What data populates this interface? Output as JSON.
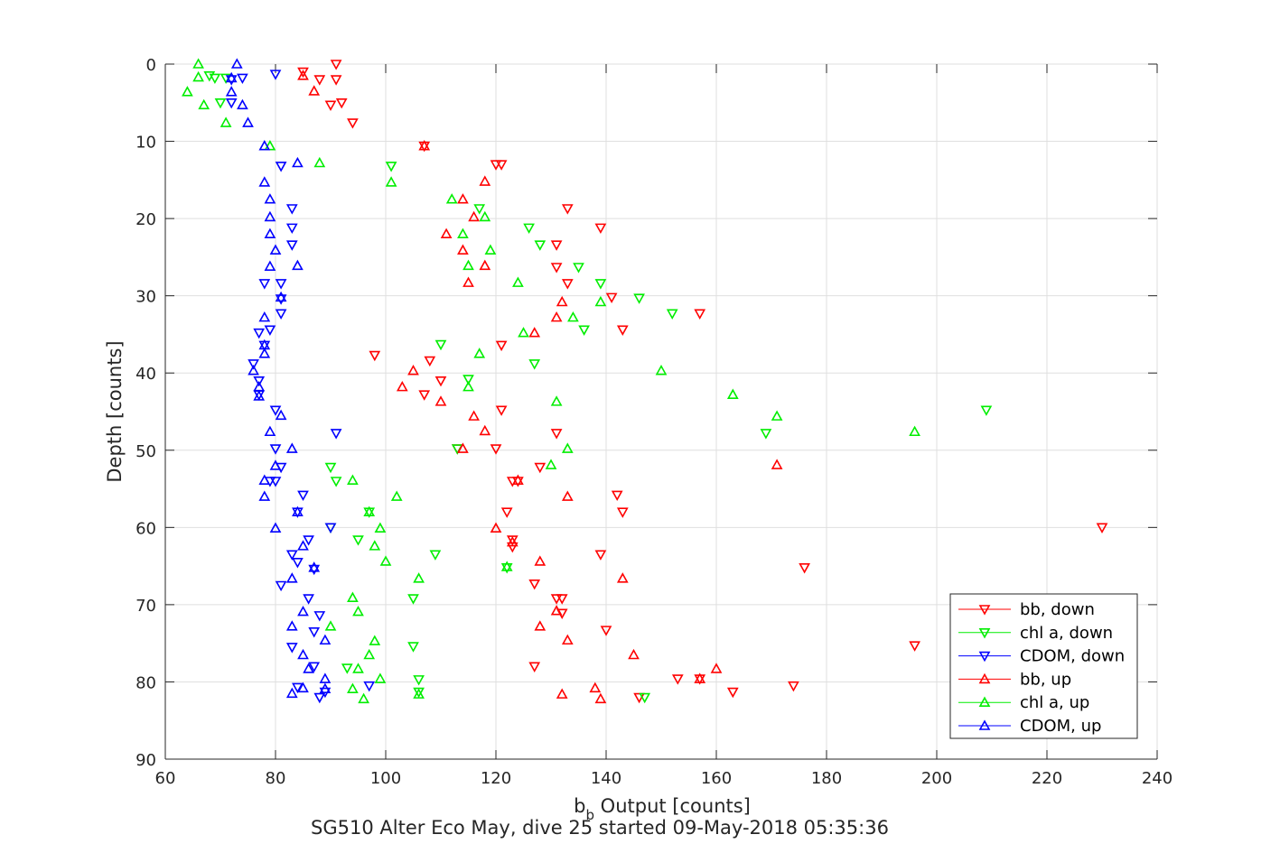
{
  "chart_data": {
    "type": "scatter",
    "xlabel_main": "b",
    "xlabel_sub": "b",
    "xlabel_rest": " Output [counts]",
    "ylabel": "Depth [counts]",
    "caption": "SG510 Alter Eco May, dive 25 started 09-May-2018 05:35:36",
    "xlim": [
      60,
      240
    ],
    "ylim": [
      0,
      90
    ],
    "y_reversed": true,
    "x_ticks": [
      "60",
      "80",
      "100",
      "120",
      "140",
      "160",
      "180",
      "200",
      "220",
      "240"
    ],
    "y_ticks": [
      "0",
      "10",
      "20",
      "30",
      "40",
      "50",
      "60",
      "70",
      "80",
      "90"
    ],
    "grid": true,
    "legend_position": "bottom-right",
    "series": [
      {
        "name": "bb, down",
        "color": "#ff0000",
        "marker": "triangle-down",
        "points": [
          [
            91,
            0
          ],
          [
            85,
            1
          ],
          [
            91,
            2
          ],
          [
            88,
            2
          ],
          [
            90,
            5.3
          ],
          [
            92,
            5
          ],
          [
            94,
            7.6
          ],
          [
            107,
            10.6
          ],
          [
            121,
            13
          ],
          [
            120,
            13
          ],
          [
            133,
            18.7
          ],
          [
            139,
            21.2
          ],
          [
            131,
            23.4
          ],
          [
            131,
            26.3
          ],
          [
            133,
            28.4
          ],
          [
            141,
            30.2
          ],
          [
            157,
            32.3
          ],
          [
            143,
            34.4
          ],
          [
            121,
            36.4
          ],
          [
            98,
            37.7
          ],
          [
            108,
            38.4
          ],
          [
            110,
            41
          ],
          [
            107,
            42.8
          ],
          [
            121,
            44.8
          ],
          [
            131,
            47.8
          ],
          [
            120,
            49.8
          ],
          [
            113,
            49.8
          ],
          [
            128,
            52.2
          ],
          [
            123,
            54
          ],
          [
            124,
            54
          ],
          [
            142,
            55.8
          ],
          [
            122,
            58
          ],
          [
            143,
            58
          ],
          [
            230,
            60
          ],
          [
            123,
            61.6
          ],
          [
            123,
            62.5
          ],
          [
            139,
            63.5
          ],
          [
            176,
            65.2
          ],
          [
            127,
            67.3
          ],
          [
            131,
            69.2
          ],
          [
            132,
            69.2
          ],
          [
            132,
            71.1
          ],
          [
            140,
            73.3
          ],
          [
            196,
            75.3
          ],
          [
            127,
            78
          ],
          [
            153,
            79.6
          ],
          [
            157,
            79.6
          ],
          [
            174,
            80.5
          ],
          [
            163,
            81.3
          ],
          [
            146,
            82
          ]
        ]
      },
      {
        "name": "chl a, down",
        "color": "#00ee00",
        "marker": "triangle-down",
        "points": [
          [
            68,
            1.5
          ],
          [
            69,
            1.8
          ],
          [
            71,
            1.8
          ],
          [
            70,
            5
          ],
          [
            101,
            13.2
          ],
          [
            117,
            18.7
          ],
          [
            126,
            21.2
          ],
          [
            128,
            23.4
          ],
          [
            135,
            26.3
          ],
          [
            139,
            28.4
          ],
          [
            146,
            30.3
          ],
          [
            152,
            32.3
          ],
          [
            136,
            34.4
          ],
          [
            110,
            36.3
          ],
          [
            127,
            38.8
          ],
          [
            115,
            40.8
          ],
          [
            209,
            44.8
          ],
          [
            169,
            47.8
          ],
          [
            113,
            49.8
          ],
          [
            90,
            52.2
          ],
          [
            91,
            54
          ],
          [
            122,
            65.2
          ],
          [
            97,
            58
          ],
          [
            90,
            60
          ],
          [
            95,
            61.6
          ],
          [
            109,
            63.5
          ],
          [
            105,
            69.2
          ],
          [
            105,
            75.4
          ],
          [
            93,
            78.2
          ],
          [
            106,
            79.7
          ],
          [
            106,
            81.3
          ],
          [
            147,
            82
          ]
        ]
      },
      {
        "name": "CDOM, down",
        "color": "#0000ff",
        "marker": "triangle-down",
        "points": [
          [
            80,
            1.3
          ],
          [
            74,
            1.8
          ],
          [
            72,
            2
          ],
          [
            72,
            5
          ],
          [
            81,
            13.2
          ],
          [
            83,
            18.7
          ],
          [
            83,
            21.2
          ],
          [
            83,
            23.4
          ],
          [
            78,
            28.4
          ],
          [
            81,
            28.4
          ],
          [
            81,
            30.4
          ],
          [
            81,
            32.3
          ],
          [
            79,
            34.4
          ],
          [
            77,
            34.8
          ],
          [
            78,
            36.4
          ],
          [
            76,
            38.8
          ],
          [
            77,
            41
          ],
          [
            77,
            42.8
          ],
          [
            80,
            44.8
          ],
          [
            91,
            47.8
          ],
          [
            80,
            49.8
          ],
          [
            81,
            52.2
          ],
          [
            79,
            54
          ],
          [
            80,
            54
          ],
          [
            85,
            55.8
          ],
          [
            84,
            58
          ],
          [
            90,
            60
          ],
          [
            86,
            61.6
          ],
          [
            83,
            63.5
          ],
          [
            84,
            64.5
          ],
          [
            87,
            65.4
          ],
          [
            81,
            67.5
          ],
          [
            86,
            69.2
          ],
          [
            88,
            71.4
          ],
          [
            87,
            73.5
          ],
          [
            83,
            75.5
          ],
          [
            87,
            78
          ],
          [
            84,
            80.7
          ],
          [
            97,
            80.5
          ],
          [
            89,
            81.3
          ],
          [
            88,
            82
          ]
        ]
      },
      {
        "name": "bb, up",
        "color": "#ff0000",
        "marker": "triangle-up",
        "points": [
          [
            85,
            1.5
          ],
          [
            87,
            3.5
          ],
          [
            107,
            10.6
          ],
          [
            118,
            15.2
          ],
          [
            114,
            17.5
          ],
          [
            116,
            19.8
          ],
          [
            111,
            22
          ],
          [
            114,
            24.1
          ],
          [
            118,
            26.1
          ],
          [
            115,
            28.3
          ],
          [
            132,
            30.8
          ],
          [
            131,
            32.8
          ],
          [
            127,
            34.8
          ],
          [
            105,
            39.7
          ],
          [
            103,
            41.8
          ],
          [
            110,
            43.7
          ],
          [
            116,
            45.6
          ],
          [
            118,
            47.5
          ],
          [
            114,
            49.8
          ],
          [
            171,
            51.9
          ],
          [
            124,
            53.9
          ],
          [
            133,
            56
          ],
          [
            120,
            60.1
          ],
          [
            123,
            61.9
          ],
          [
            128,
            64.4
          ],
          [
            143,
            66.6
          ],
          [
            131,
            70.8
          ],
          [
            128,
            72.8
          ],
          [
            133,
            74.6
          ],
          [
            145,
            76.5
          ],
          [
            160,
            78.3
          ],
          [
            157,
            79.6
          ],
          [
            138,
            80.8
          ],
          [
            132,
            81.6
          ],
          [
            139,
            82.2
          ]
        ]
      },
      {
        "name": "chl a, up",
        "color": "#00ee00",
        "marker": "triangle-up",
        "points": [
          [
            66,
            0
          ],
          [
            66,
            1.7
          ],
          [
            64,
            3.6
          ],
          [
            67,
            5.3
          ],
          [
            71,
            7.6
          ],
          [
            79,
            10.6
          ],
          [
            88,
            12.8
          ],
          [
            101,
            15.3
          ],
          [
            112,
            17.5
          ],
          [
            118,
            19.8
          ],
          [
            114,
            22
          ],
          [
            119,
            24.1
          ],
          [
            115,
            26.1
          ],
          [
            124,
            28.3
          ],
          [
            139,
            30.8
          ],
          [
            134,
            32.8
          ],
          [
            125,
            34.8
          ],
          [
            117,
            37.5
          ],
          [
            150,
            39.7
          ],
          [
            115,
            41.8
          ],
          [
            131,
            43.7
          ],
          [
            163,
            42.8
          ],
          [
            171,
            45.6
          ],
          [
            196,
            47.6
          ],
          [
            133,
            49.8
          ],
          [
            130,
            51.9
          ],
          [
            94,
            53.9
          ],
          [
            102,
            56
          ],
          [
            97,
            58
          ],
          [
            99,
            60.1
          ],
          [
            98,
            62.4
          ],
          [
            100,
            64.4
          ],
          [
            106,
            66.6
          ],
          [
            94,
            69.1
          ],
          [
            95,
            70.9
          ],
          [
            90,
            72.8
          ],
          [
            98,
            74.7
          ],
          [
            97,
            76.5
          ],
          [
            95,
            78.3
          ],
          [
            99,
            79.6
          ],
          [
            94,
            80.9
          ],
          [
            106,
            81.6
          ],
          [
            96,
            82.2
          ],
          [
            122,
            65.1
          ]
        ]
      },
      {
        "name": "CDOM, up",
        "color": "#0000ff",
        "marker": "triangle-up",
        "points": [
          [
            73,
            0
          ],
          [
            72,
            1.8
          ],
          [
            72,
            3.6
          ],
          [
            74,
            5.3
          ],
          [
            75,
            7.6
          ],
          [
            78,
            10.6
          ],
          [
            84,
            12.8
          ],
          [
            78,
            15.3
          ],
          [
            79,
            17.5
          ],
          [
            79,
            19.8
          ],
          [
            79,
            22
          ],
          [
            80,
            24.1
          ],
          [
            84,
            26.1
          ],
          [
            79,
            26.2
          ],
          [
            81,
            30.2
          ],
          [
            78,
            32.8
          ],
          [
            78,
            36.4
          ],
          [
            78,
            37.5
          ],
          [
            76,
            39.7
          ],
          [
            77,
            41.8
          ],
          [
            77,
            43
          ],
          [
            81,
            45.5
          ],
          [
            79,
            47.6
          ],
          [
            83,
            49.8
          ],
          [
            80,
            52
          ],
          [
            78,
            53.9
          ],
          [
            78,
            56
          ],
          [
            84,
            58
          ],
          [
            80,
            60.1
          ],
          [
            85,
            62.4
          ],
          [
            87,
            65.2
          ],
          [
            83,
            66.6
          ],
          [
            85,
            70.9
          ],
          [
            83,
            72.8
          ],
          [
            89,
            74.6
          ],
          [
            85,
            76.5
          ],
          [
            86,
            78.3
          ],
          [
            89,
            79.6
          ],
          [
            85,
            80.8
          ],
          [
            83,
            81.5
          ],
          [
            89,
            80.9
          ]
        ]
      }
    ]
  }
}
